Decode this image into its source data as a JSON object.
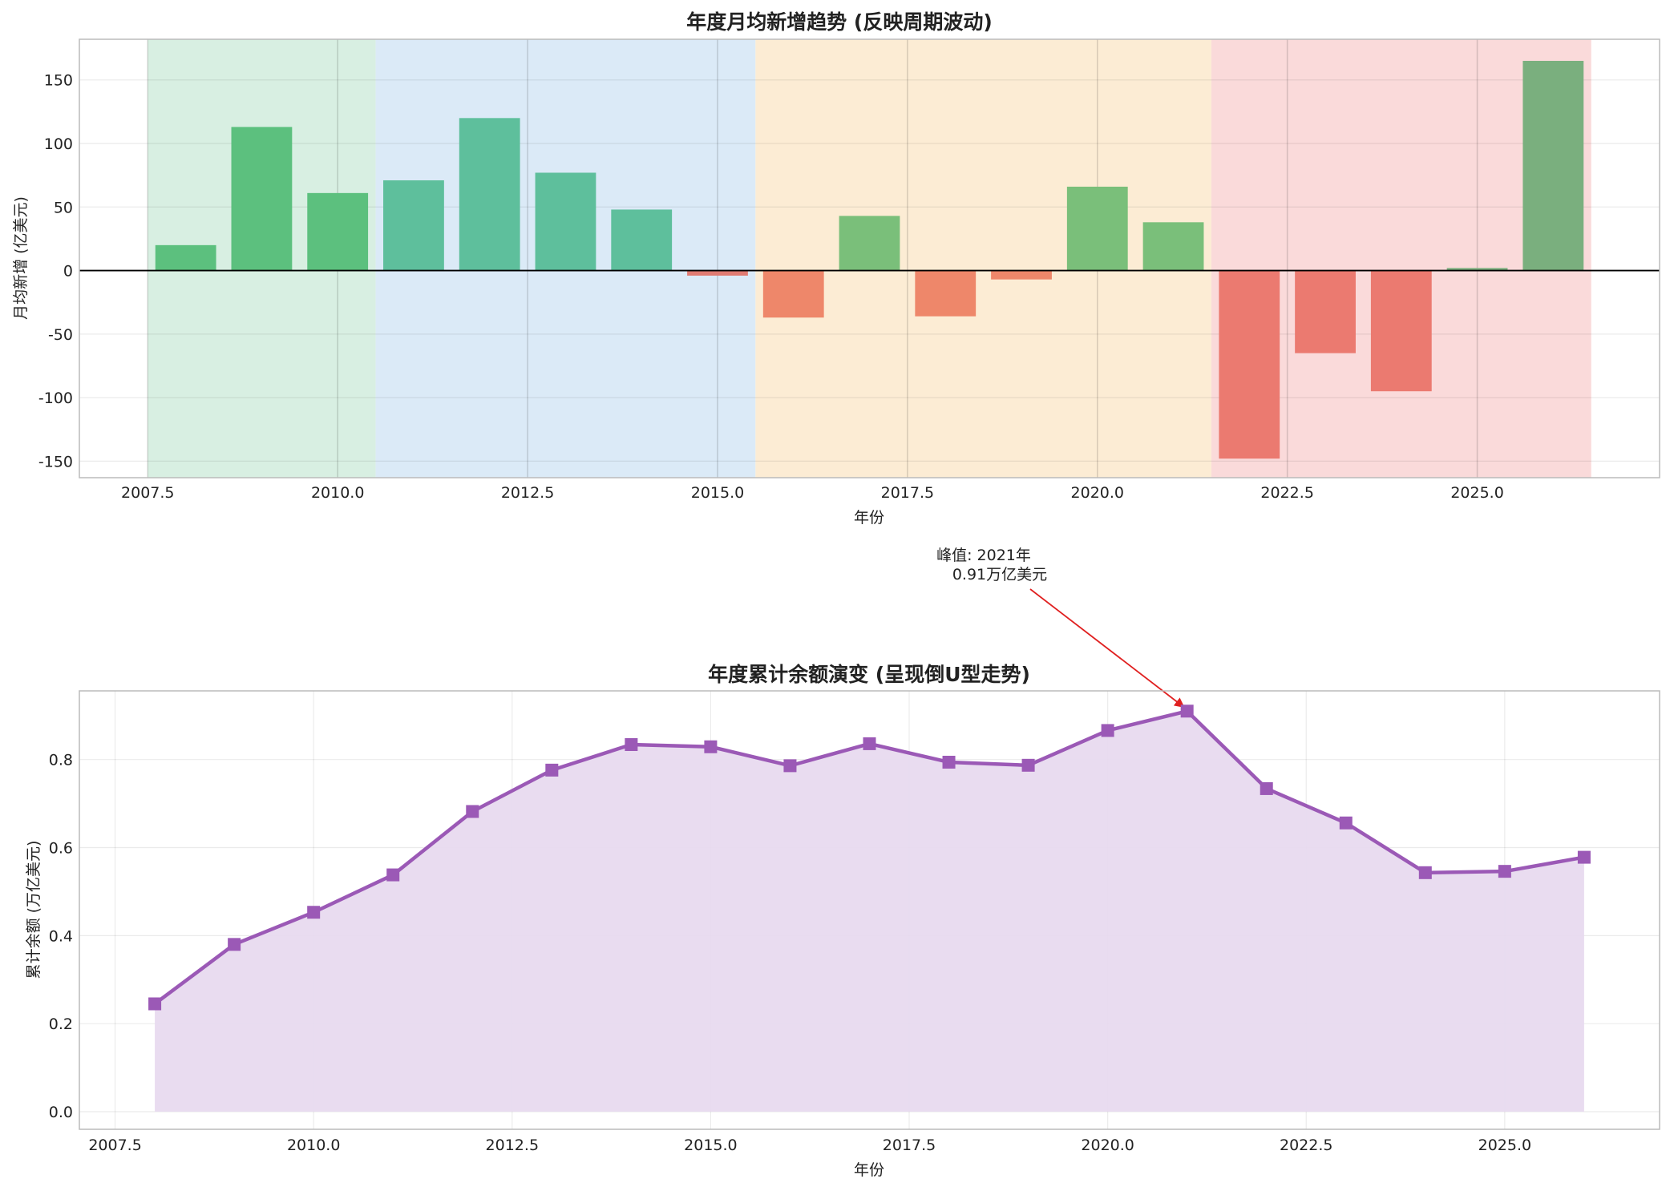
{
  "chart_data": [
    {
      "type": "bar",
      "title": "年度月均新增趋势 (反映周期波动)",
      "xlabel": "年份",
      "ylabel": "月均新增 (亿美元)",
      "xlim": [
        2006.6,
        2027.4
      ],
      "ylim": [
        -163,
        182
      ],
      "xticks": [
        "2007.5",
        "2010.0",
        "2012.5",
        "2015.0",
        "2017.5",
        "2020.0",
        "2022.5",
        "2025.0"
      ],
      "yticks": [
        "150",
        "100",
        "50",
        "0",
        "-50",
        "-100",
        "-150"
      ],
      "grid": true,
      "zero_line": true,
      "categories": [
        2008,
        2009,
        2010,
        2011,
        2012,
        2013,
        2014,
        2015,
        2016,
        2017,
        2018,
        2019,
        2020,
        2021,
        2022,
        2023,
        2024,
        2025,
        2026
      ],
      "values": [
        20,
        113,
        61,
        71,
        120,
        77,
        48,
        -4,
        -37,
        43,
        -36,
        -7,
        66,
        38,
        -148,
        -65,
        -95,
        2,
        165
      ],
      "bar_colors": [
        "#5cc07e",
        "#5cc07e",
        "#5cc07e",
        "#5ebf9c",
        "#5ebf9c",
        "#5ebf9c",
        "#5ebf9c",
        "#e07b72",
        "#ee876a",
        "#7abf7a",
        "#ee876a",
        "#ee876a",
        "#7abf7a",
        "#7abf7a",
        "#eb7a70",
        "#eb7a70",
        "#eb7a70",
        "#7aaf7e",
        "#7aaf7e"
      ],
      "bands": [
        {
          "x0": 2007.5,
          "x1": 2010.5,
          "color": "#d8efe2"
        },
        {
          "x0": 2010.5,
          "x1": 2015.5,
          "color": "#dbeaf7"
        },
        {
          "x0": 2015.5,
          "x1": 2021.5,
          "color": "#fcecd4"
        },
        {
          "x0": 2021.5,
          "x1": 2026.5,
          "color": "#fadada"
        }
      ]
    },
    {
      "type": "area",
      "title": "年度累计余额演变 (呈现倒U型走势)",
      "xlabel": "年份",
      "ylabel": "累计余额 (万亿美元)",
      "xlim": [
        2007.05,
        2026.95
      ],
      "ylim": [
        -0.04,
        0.956
      ],
      "xticks": [
        "2007.5",
        "2010.0",
        "2012.5",
        "2015.0",
        "2017.5",
        "2020.0",
        "2022.5",
        "2025.0"
      ],
      "yticks": [
        "0.0",
        "0.2",
        "0.4",
        "0.6",
        "0.8"
      ],
      "grid": true,
      "x": [
        2008,
        2009,
        2010,
        2011,
        2012,
        2013,
        2014,
        2015,
        2016,
        2017,
        2018,
        2019,
        2020,
        2021,
        2022,
        2023,
        2024,
        2025,
        2026
      ],
      "y": [
        0.245,
        0.38,
        0.453,
        0.538,
        0.682,
        0.776,
        0.834,
        0.829,
        0.786,
        0.836,
        0.794,
        0.787,
        0.866,
        0.91,
        0.734,
        0.656,
        0.543,
        0.546,
        0.578
      ],
      "line_color": "#9b59b6",
      "fill_color": "#e8daef",
      "annotation": {
        "x": 2021,
        "y": 0.91,
        "text": [
          "峰值: 2021年",
          "0.91万亿美元"
        ],
        "color": "#e02020"
      }
    }
  ]
}
